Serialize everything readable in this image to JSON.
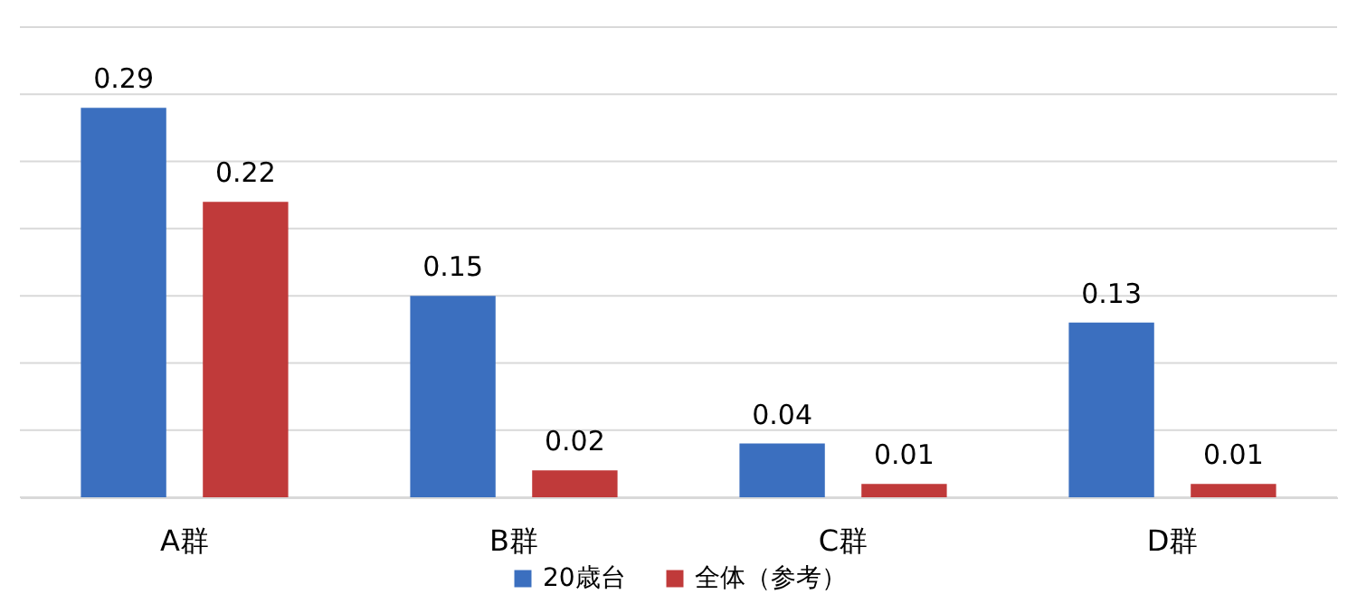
{
  "chart_data": {
    "type": "bar",
    "categories": [
      "A群",
      "B群",
      "C群",
      "D群"
    ],
    "series": [
      {
        "name": "20歳台",
        "color": "#3b6fbf",
        "values": [
          0.29,
          0.15,
          0.04,
          0.13
        ]
      },
      {
        "name": "全体（参考）",
        "color": "#c03a3a",
        "values": [
          0.22,
          0.02,
          0.01,
          0.01
        ]
      }
    ],
    "ylim": [
      0,
      0.35
    ],
    "yticks": [
      {
        "value": 0,
        "label": null
      },
      {
        "value": 0.05,
        "label": null
      },
      {
        "value": 0.1,
        "label": null
      },
      {
        "value": 0.15,
        "label": null
      },
      {
        "value": 0.2,
        "label": null
      },
      {
        "value": 0.25,
        "label": null
      },
      {
        "value": 0.3,
        "label": null
      },
      {
        "value": 0.35,
        "label": null
      }
    ],
    "grid": "y",
    "tick_labels": "x",
    "legend": "bottom",
    "data_labels": true
  }
}
